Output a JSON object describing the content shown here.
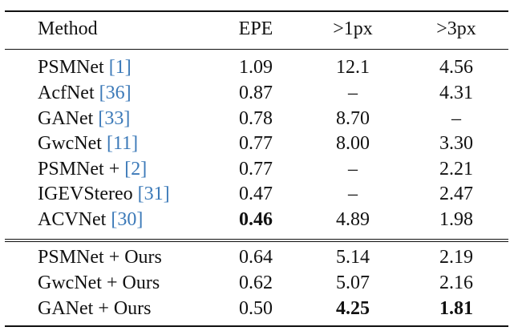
{
  "table": {
    "headers": [
      "Method",
      "EPE",
      ">1px",
      ">3px"
    ],
    "groups": [
      [
        {
          "name": "PSMNet",
          "ref": "1",
          "epe": "1.09",
          "px1": "12.1",
          "px3": "4.56"
        },
        {
          "name": "AcfNet",
          "ref": "36",
          "epe": "0.87",
          "px1": "–",
          "px3": "4.31"
        },
        {
          "name": "GANet",
          "ref": "33",
          "epe": "0.78",
          "px1": "8.70",
          "px3": "–"
        },
        {
          "name": "GwcNet",
          "ref": "11",
          "epe": "0.77",
          "px1": "8.00",
          "px3": "3.30"
        },
        {
          "name": "PSMNet +",
          "ref": "2",
          "epe": "0.77",
          "px1": "–",
          "px3": "2.21"
        },
        {
          "name": "IGEVStereo",
          "ref": "31",
          "epe": "0.47",
          "px1": "–",
          "px3": "2.47"
        },
        {
          "name": "ACVNet",
          "ref": "30",
          "epe": "0.46",
          "px1": "4.89",
          "px3": "1.98"
        }
      ],
      [
        {
          "name": "PSMNet + Ours",
          "epe": "0.64",
          "px1": "5.14",
          "px3": "2.19"
        },
        {
          "name": "GwcNet + Ours",
          "epe": "0.62",
          "px1": "5.07",
          "px3": "2.16"
        },
        {
          "name": "GANet + Ours",
          "epe": "0.50",
          "px1": "4.25",
          "px3": "1.81"
        }
      ]
    ]
  }
}
